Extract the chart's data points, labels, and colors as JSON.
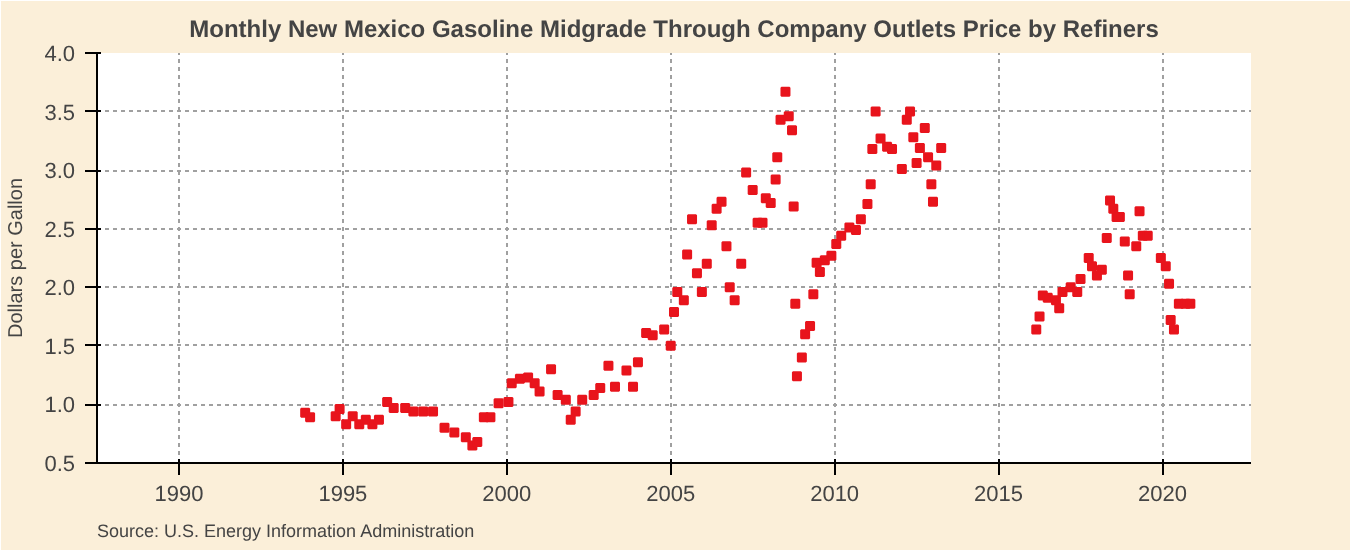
{
  "chart_data": {
    "type": "scatter",
    "title": "Monthly New Mexico Gasoline Midgrade Through Company Outlets Price by Refiners",
    "ylabel": "Dollars per Gallon",
    "annotations": [
      "Source: U.S. Energy Information Administration"
    ],
    "x": [
      1993.85,
      1994.0,
      1994.78,
      1994.9,
      1995.1,
      1995.3,
      1995.5,
      1995.7,
      1995.9,
      1996.1,
      1996.35,
      1996.55,
      1996.9,
      1997.15,
      1997.45,
      1997.75,
      1998.1,
      1998.4,
      1998.75,
      1998.95,
      1999.1,
      1999.3,
      1999.5,
      1999.75,
      2000.05,
      2000.15,
      2000.4,
      2000.65,
      2000.85,
      2001.0,
      2001.35,
      2001.55,
      2001.8,
      2001.95,
      2002.1,
      2002.3,
      2002.65,
      2002.85,
      2003.1,
      2003.3,
      2003.65,
      2003.85,
      2004.0,
      2004.25,
      2004.45,
      2004.8,
      2005.0,
      2005.1,
      2005.2,
      2005.4,
      2005.5,
      2005.65,
      2005.8,
      2005.95,
      2006.1,
      2006.25,
      2006.4,
      2006.55,
      2006.7,
      2006.8,
      2006.95,
      2007.15,
      2007.3,
      2007.5,
      2007.65,
      2007.8,
      2007.9,
      2008.05,
      2008.2,
      2008.25,
      2008.35,
      2008.5,
      2008.6,
      2008.7,
      2008.75,
      2008.8,
      2008.85,
      2009.0,
      2009.1,
      2009.25,
      2009.35,
      2009.45,
      2009.55,
      2009.7,
      2009.9,
      2010.05,
      2010.2,
      2010.45,
      2010.65,
      2010.8,
      2011.0,
      2011.1,
      2011.15,
      2011.25,
      2011.4,
      2011.6,
      2011.75,
      2012.05,
      2012.2,
      2012.3,
      2012.4,
      2012.5,
      2012.6,
      2012.75,
      2012.85,
      2012.95,
      2013.0,
      2013.1,
      2013.25,
      2016.15,
      2016.25,
      2016.35,
      2016.5,
      2016.75,
      2016.85,
      2016.95,
      2017.2,
      2017.4,
      2017.5,
      2017.75,
      2017.85,
      2018.0,
      2018.15,
      2018.3,
      2018.4,
      2018.5,
      2018.6,
      2018.7,
      2018.85,
      2018.95,
      2019.0,
      2019.2,
      2019.3,
      2019.4,
      2019.55,
      2019.95,
      2020.1,
      2020.2,
      2020.25,
      2020.35,
      2020.5,
      2020.7,
      2020.85
    ],
    "series": [
      {
        "color": "#e8141c",
        "values": [
          0.93,
          0.89,
          0.9,
          0.96,
          0.83,
          0.9,
          0.83,
          0.87,
          0.83,
          0.87,
          1.02,
          0.97,
          0.97,
          0.94,
          0.94,
          0.94,
          0.8,
          0.76,
          0.72,
          0.65,
          0.68,
          0.89,
          0.89,
          1.01,
          1.02,
          1.18,
          1.22,
          1.23,
          1.18,
          1.11,
          1.3,
          1.08,
          1.04,
          0.87,
          0.94,
          1.04,
          1.08,
          1.14,
          1.33,
          1.15,
          1.29,
          1.15,
          1.36,
          1.61,
          1.59,
          1.64,
          1.5,
          1.79,
          1.96,
          1.89,
          2.28,
          2.58,
          2.12,
          1.96,
          2.2,
          2.53,
          2.67,
          2.73,
          2.35,
          2.0,
          1.89,
          2.2,
          2.98,
          2.83,
          2.55,
          2.55,
          2.76,
          2.72,
          2.92,
          3.11,
          3.43,
          3.67,
          3.46,
          3.34,
          2.69,
          1.86,
          1.24,
          1.4,
          1.6,
          1.67,
          1.94,
          2.21,
          2.13,
          2.23,
          2.27,
          2.37,
          2.44,
          2.51,
          2.49,
          2.58,
          2.71,
          2.88,
          3.18,
          3.5,
          3.27,
          3.2,
          3.18,
          3.01,
          3.43,
          3.5,
          3.28,
          3.06,
          3.19,
          3.36,
          3.11,
          2.88,
          2.73,
          3.04,
          3.19,
          1.64,
          1.75,
          1.93,
          1.91,
          1.89,
          1.82,
          1.96,
          2.0,
          1.96,
          2.07,
          2.25,
          2.18,
          2.1,
          2.15,
          2.42,
          2.74,
          2.67,
          2.6,
          2.6,
          2.39,
          2.1,
          1.94,
          2.35,
          2.65,
          2.44,
          2.44,
          2.25,
          2.18,
          2.03,
          1.72,
          1.64,
          1.86,
          1.86,
          1.86
        ]
      }
    ],
    "xlim": [
      1987.5,
      2022.7
    ],
    "ylim": [
      0.5,
      4.0
    ],
    "xticks": [
      1990,
      1995,
      2000,
      2005,
      2010,
      2015,
      2020
    ],
    "yticks": [
      {
        "value": 0.5,
        "label": "0.5"
      },
      {
        "value": 1,
        "label": "1.0"
      },
      {
        "value": 1.5,
        "label": "1.5"
      },
      {
        "value": 2,
        "label": "2.0"
      },
      {
        "value": 2.5,
        "label": "2.5"
      },
      {
        "value": 3,
        "label": "3.0"
      },
      {
        "value": 3.5,
        "label": "3.5"
      },
      {
        "value": 4,
        "label": "4.0"
      }
    ],
    "grid": true,
    "marker": "square"
  }
}
